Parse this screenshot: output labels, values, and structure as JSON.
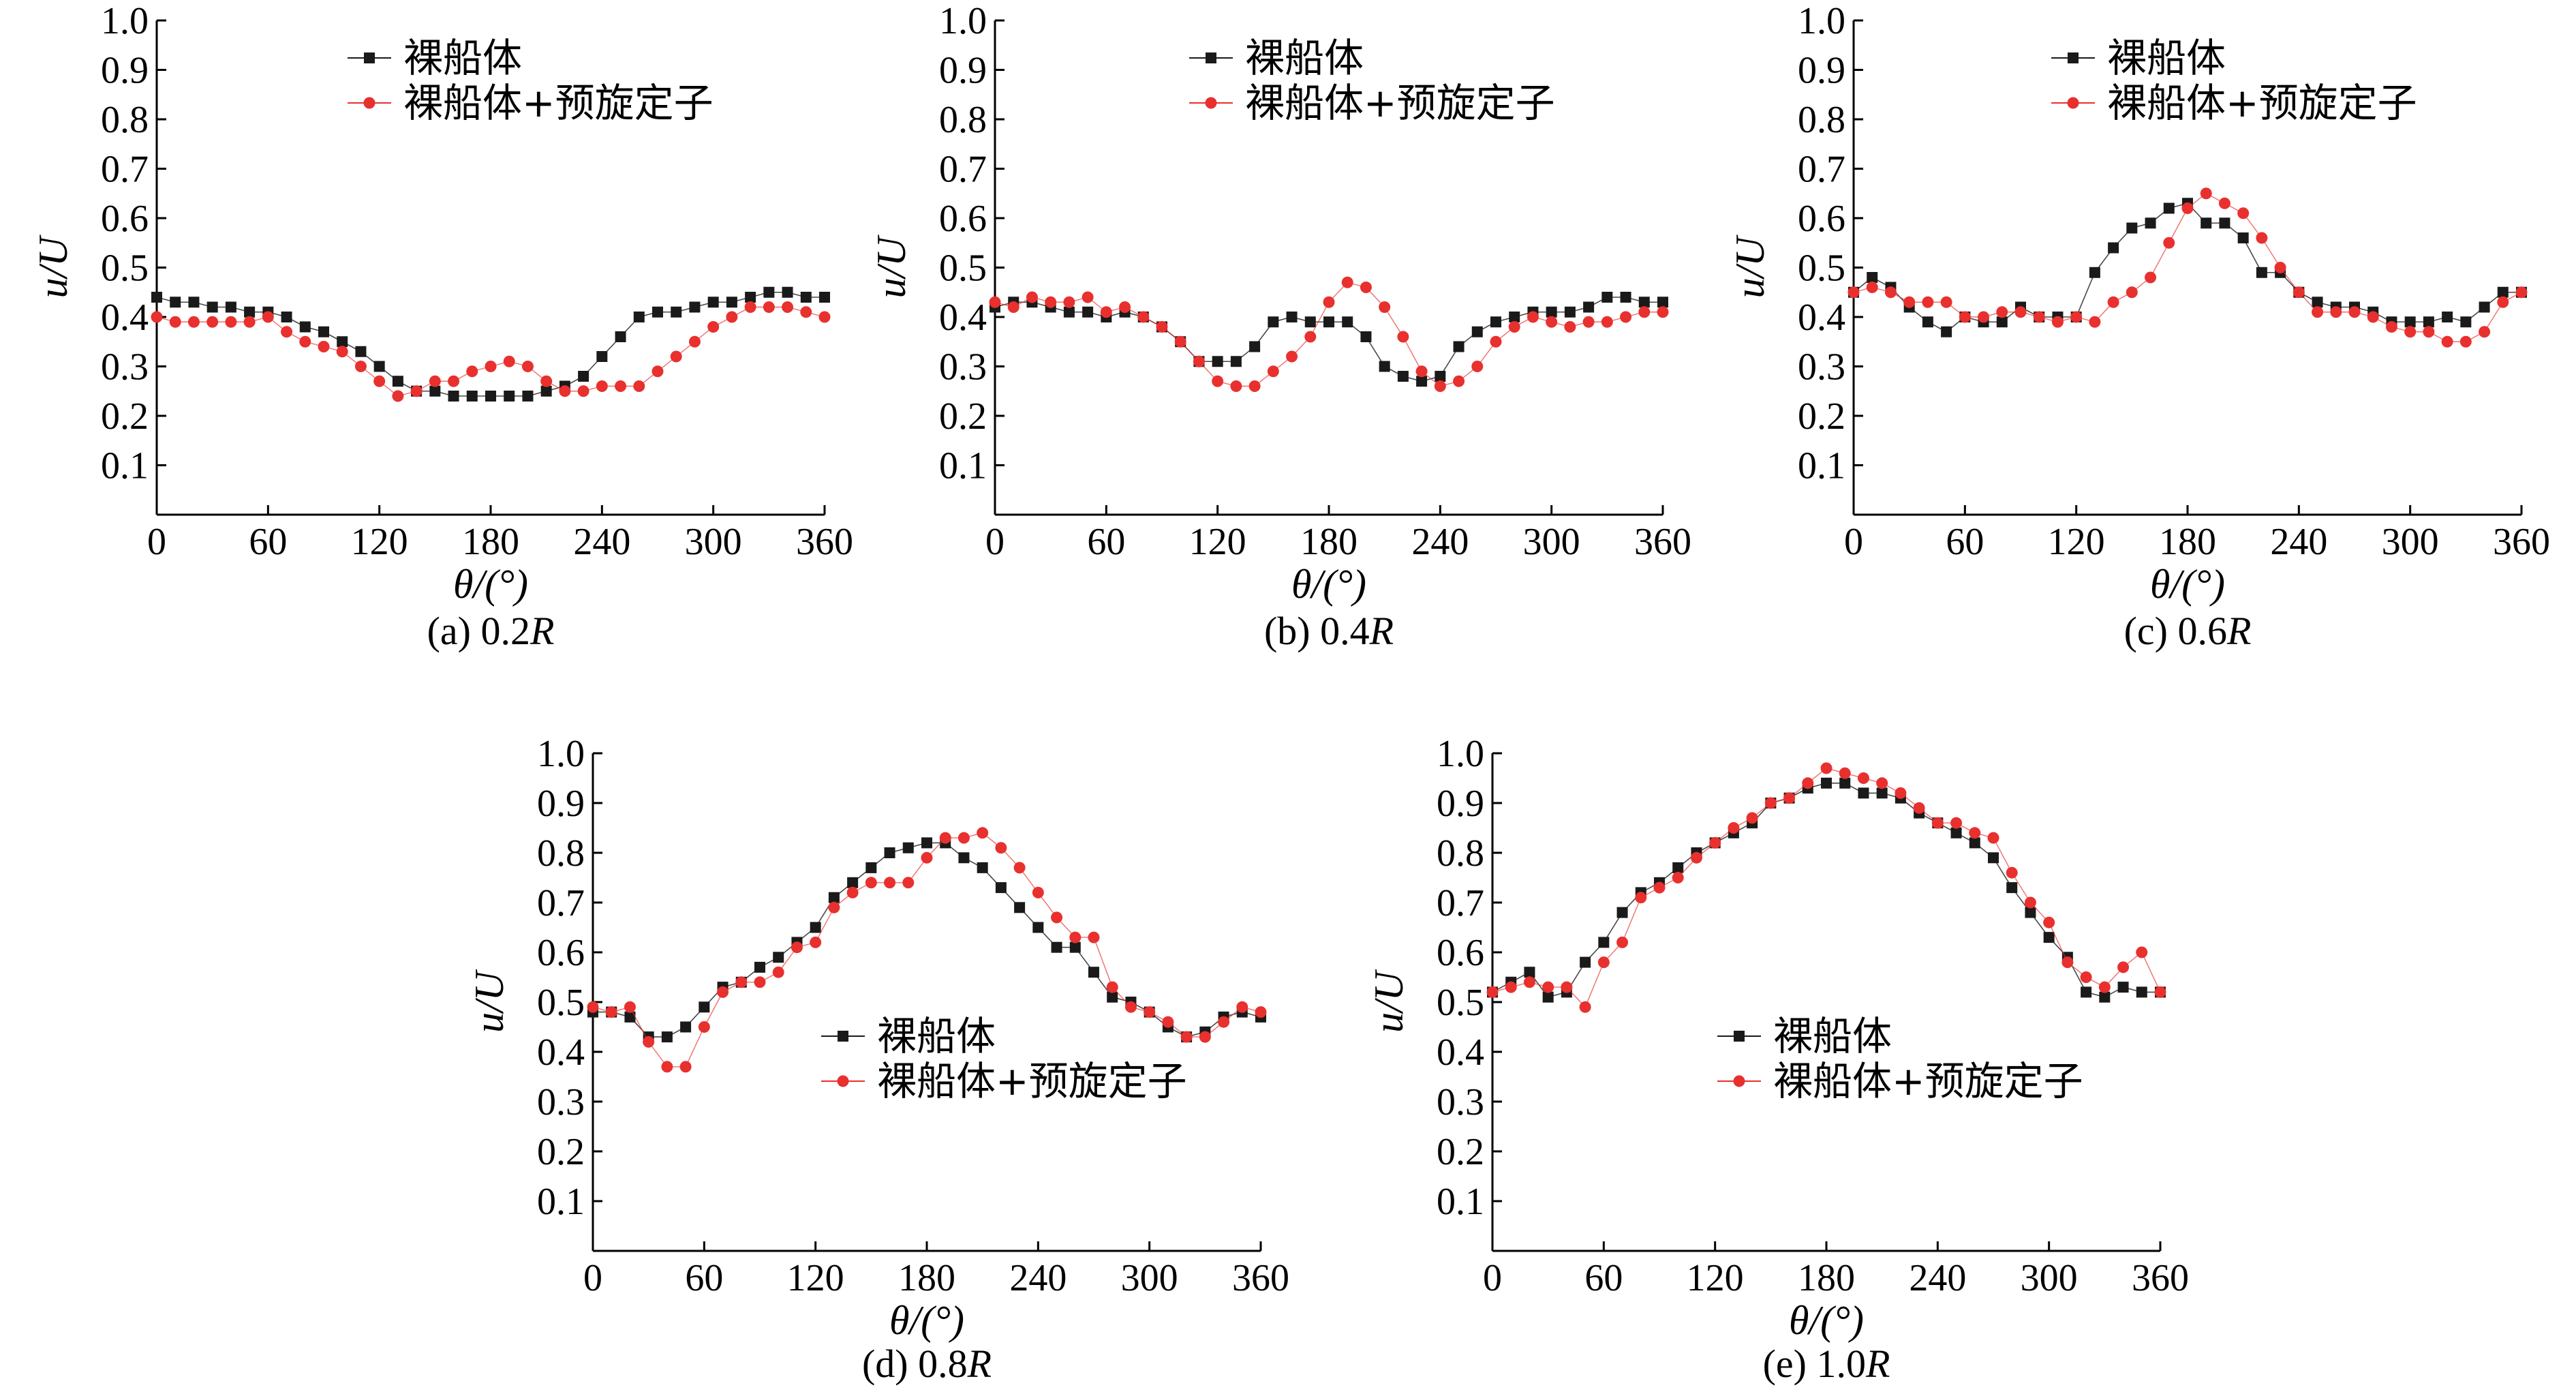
{
  "figure": {
    "legend_labels": [
      "裸船体",
      "裸船体+预旋定子"
    ],
    "colors": {
      "bare_hull": "#1a1a1a",
      "hull_with_stator": "#e8302e",
      "axis": "#000000"
    }
  },
  "chart_data": [
    {
      "type": "line",
      "caption": "(a) 0.2R",
      "caption_prefix": "(a) 0.2",
      "caption_suffix": "R",
      "xlabel": "θ/(°)",
      "ylabel": "u/U",
      "xlim": [
        0,
        360
      ],
      "ylim": [
        0,
        1.0
      ],
      "xticks": [
        0,
        60,
        120,
        180,
        240,
        300,
        360
      ],
      "yticks": [
        0.1,
        0.2,
        0.3,
        0.4,
        0.5,
        0.6,
        0.7,
        0.8,
        0.9,
        1.0
      ],
      "legend_position": "top-center",
      "x": [
        0,
        10,
        20,
        30,
        40,
        50,
        60,
        70,
        80,
        90,
        100,
        110,
        120,
        130,
        140,
        150,
        160,
        170,
        180,
        190,
        200,
        210,
        220,
        230,
        240,
        250,
        260,
        270,
        280,
        290,
        300,
        310,
        320,
        330,
        340,
        350,
        360
      ],
      "series": [
        {
          "name": "裸船体",
          "values": [
            0.44,
            0.43,
            0.43,
            0.42,
            0.42,
            0.41,
            0.41,
            0.4,
            0.38,
            0.37,
            0.35,
            0.33,
            0.3,
            0.27,
            0.25,
            0.25,
            0.24,
            0.24,
            0.24,
            0.24,
            0.24,
            0.25,
            0.26,
            0.28,
            0.32,
            0.36,
            0.4,
            0.41,
            0.41,
            0.42,
            0.43,
            0.43,
            0.44,
            0.45,
            0.45,
            0.44,
            0.44
          ]
        },
        {
          "name": "裸船体+预旋定子",
          "values": [
            0.4,
            0.39,
            0.39,
            0.39,
            0.39,
            0.39,
            0.4,
            0.37,
            0.35,
            0.34,
            0.33,
            0.3,
            0.27,
            0.24,
            0.25,
            0.27,
            0.27,
            0.29,
            0.3,
            0.31,
            0.3,
            0.27,
            0.25,
            0.25,
            0.26,
            0.26,
            0.26,
            0.29,
            0.32,
            0.35,
            0.38,
            0.4,
            0.42,
            0.42,
            0.42,
            0.41,
            0.4
          ]
        }
      ]
    },
    {
      "type": "line",
      "caption": "(b) 0.4R",
      "caption_prefix": "(b) 0.4",
      "caption_suffix": "R",
      "xlabel": "θ/(°)",
      "ylabel": "u/U",
      "xlim": [
        0,
        360
      ],
      "ylim": [
        0,
        1.0
      ],
      "xticks": [
        0,
        60,
        120,
        180,
        240,
        300,
        360
      ],
      "yticks": [
        0.1,
        0.2,
        0.3,
        0.4,
        0.5,
        0.6,
        0.7,
        0.8,
        0.9,
        1.0
      ],
      "legend_position": "top-center",
      "x": [
        0,
        10,
        20,
        30,
        40,
        50,
        60,
        70,
        80,
        90,
        100,
        110,
        120,
        130,
        140,
        150,
        160,
        170,
        180,
        190,
        200,
        210,
        220,
        230,
        240,
        250,
        260,
        270,
        280,
        290,
        300,
        310,
        320,
        330,
        340,
        350,
        360
      ],
      "series": [
        {
          "name": "裸船体",
          "values": [
            0.42,
            0.43,
            0.43,
            0.42,
            0.41,
            0.41,
            0.4,
            0.41,
            0.4,
            0.38,
            0.35,
            0.31,
            0.31,
            0.31,
            0.34,
            0.39,
            0.4,
            0.39,
            0.39,
            0.39,
            0.36,
            0.3,
            0.28,
            0.27,
            0.28,
            0.34,
            0.37,
            0.39,
            0.4,
            0.41,
            0.41,
            0.41,
            0.42,
            0.44,
            0.44,
            0.43,
            0.43
          ]
        },
        {
          "name": "裸船体+预旋定子",
          "values": [
            0.43,
            0.42,
            0.44,
            0.43,
            0.43,
            0.44,
            0.41,
            0.42,
            0.4,
            0.38,
            0.35,
            0.31,
            0.27,
            0.26,
            0.26,
            0.29,
            0.32,
            0.36,
            0.43,
            0.47,
            0.46,
            0.42,
            0.36,
            0.29,
            0.26,
            0.27,
            0.3,
            0.35,
            0.38,
            0.4,
            0.39,
            0.38,
            0.39,
            0.39,
            0.4,
            0.41,
            0.41
          ]
        }
      ]
    },
    {
      "type": "line",
      "caption": "(c) 0.6R",
      "caption_prefix": "(c) 0.6",
      "caption_suffix": "R",
      "xlabel": "θ/(°)",
      "ylabel": "u/U",
      "xlim": [
        0,
        360
      ],
      "ylim": [
        0,
        1.0
      ],
      "xticks": [
        0,
        60,
        120,
        180,
        240,
        300,
        360
      ],
      "yticks": [
        0.1,
        0.2,
        0.3,
        0.4,
        0.5,
        0.6,
        0.7,
        0.8,
        0.9,
        1.0
      ],
      "legend_position": "top-center",
      "x": [
        0,
        10,
        20,
        30,
        40,
        50,
        60,
        70,
        80,
        90,
        100,
        110,
        120,
        130,
        140,
        150,
        160,
        170,
        180,
        190,
        200,
        210,
        220,
        230,
        240,
        250,
        260,
        270,
        280,
        290,
        300,
        310,
        320,
        330,
        340,
        350,
        360
      ],
      "series": [
        {
          "name": "裸船体",
          "values": [
            0.45,
            0.48,
            0.46,
            0.42,
            0.39,
            0.37,
            0.4,
            0.39,
            0.39,
            0.42,
            0.4,
            0.4,
            0.4,
            0.49,
            0.54,
            0.58,
            0.59,
            0.62,
            0.63,
            0.59,
            0.59,
            0.56,
            0.49,
            0.49,
            0.45,
            0.43,
            0.42,
            0.42,
            0.41,
            0.39,
            0.39,
            0.39,
            0.4,
            0.39,
            0.42,
            0.45,
            0.45
          ]
        },
        {
          "name": "裸船体+预旋定子",
          "values": [
            0.45,
            0.46,
            0.45,
            0.43,
            0.43,
            0.43,
            0.4,
            0.4,
            0.41,
            0.41,
            0.4,
            0.39,
            0.4,
            0.39,
            0.43,
            0.45,
            0.48,
            0.55,
            0.62,
            0.65,
            0.63,
            0.61,
            0.56,
            0.5,
            0.45,
            0.41,
            0.41,
            0.41,
            0.4,
            0.38,
            0.37,
            0.37,
            0.35,
            0.35,
            0.37,
            0.43,
            0.45
          ]
        }
      ]
    },
    {
      "type": "line",
      "caption": "(d) 0.8R",
      "caption_prefix": "(d) 0.8",
      "caption_suffix": "R",
      "xlabel": "θ/(°)",
      "ylabel": "u/U",
      "xlim": [
        0,
        360
      ],
      "ylim": [
        0,
        1.0
      ],
      "xticks": [
        0,
        60,
        120,
        180,
        240,
        300,
        360
      ],
      "yticks": [
        0.1,
        0.2,
        0.3,
        0.4,
        0.5,
        0.6,
        0.7,
        0.8,
        0.9,
        1.0
      ],
      "legend_position": "center-right",
      "x": [
        0,
        10,
        20,
        30,
        40,
        50,
        60,
        70,
        80,
        90,
        100,
        110,
        120,
        130,
        140,
        150,
        160,
        170,
        180,
        190,
        200,
        210,
        220,
        230,
        240,
        250,
        260,
        270,
        280,
        290,
        300,
        310,
        320,
        330,
        340,
        350,
        360
      ],
      "series": [
        {
          "name": "裸船体",
          "values": [
            0.48,
            0.48,
            0.47,
            0.43,
            0.43,
            0.45,
            0.49,
            0.53,
            0.54,
            0.57,
            0.59,
            0.62,
            0.65,
            0.71,
            0.74,
            0.77,
            0.8,
            0.81,
            0.82,
            0.82,
            0.79,
            0.77,
            0.73,
            0.69,
            0.65,
            0.61,
            0.61,
            0.56,
            0.51,
            0.5,
            0.48,
            0.45,
            0.43,
            0.44,
            0.47,
            0.48,
            0.47
          ]
        },
        {
          "name": "裸船体+预旋定子",
          "values": [
            0.49,
            0.48,
            0.49,
            0.42,
            0.37,
            0.37,
            0.45,
            0.52,
            0.54,
            0.54,
            0.56,
            0.61,
            0.62,
            0.69,
            0.72,
            0.74,
            0.74,
            0.74,
            0.79,
            0.83,
            0.83,
            0.84,
            0.81,
            0.77,
            0.72,
            0.67,
            0.63,
            0.63,
            0.53,
            0.49,
            0.48,
            0.46,
            0.43,
            0.43,
            0.46,
            0.49,
            0.48
          ]
        }
      ]
    },
    {
      "type": "line",
      "caption": "(e) 1.0R",
      "caption_prefix": "(e) 1.0",
      "caption_suffix": "R",
      "xlabel": "θ/(°)",
      "ylabel": "u/U",
      "xlim": [
        0,
        360
      ],
      "ylim": [
        0,
        1.0
      ],
      "xticks": [
        0,
        60,
        120,
        180,
        240,
        300,
        360
      ],
      "yticks": [
        0.1,
        0.2,
        0.3,
        0.4,
        0.5,
        0.6,
        0.7,
        0.8,
        0.9,
        1.0
      ],
      "legend_position": "center-right",
      "x": [
        0,
        10,
        20,
        30,
        40,
        50,
        60,
        70,
        80,
        90,
        100,
        110,
        120,
        130,
        140,
        150,
        160,
        170,
        180,
        190,
        200,
        210,
        220,
        230,
        240,
        250,
        260,
        270,
        280,
        290,
        300,
        310,
        320,
        330,
        340,
        350,
        360
      ],
      "series": [
        {
          "name": "裸船体",
          "values": [
            0.52,
            0.54,
            0.56,
            0.51,
            0.52,
            0.58,
            0.62,
            0.68,
            0.72,
            0.74,
            0.77,
            0.8,
            0.82,
            0.84,
            0.86,
            0.9,
            0.91,
            0.93,
            0.94,
            0.94,
            0.92,
            0.92,
            0.91,
            0.88,
            0.86,
            0.84,
            0.82,
            0.79,
            0.73,
            0.68,
            0.63,
            0.59,
            0.52,
            0.51,
            0.53,
            0.52,
            0.52
          ]
        },
        {
          "name": "裸船体+预旋定子",
          "values": [
            0.52,
            0.53,
            0.54,
            0.53,
            0.53,
            0.49,
            0.58,
            0.62,
            0.71,
            0.73,
            0.75,
            0.79,
            0.82,
            0.85,
            0.87,
            0.9,
            0.91,
            0.94,
            0.97,
            0.96,
            0.95,
            0.94,
            0.92,
            0.89,
            0.86,
            0.86,
            0.84,
            0.83,
            0.76,
            0.7,
            0.66,
            0.58,
            0.55,
            0.53,
            0.57,
            0.6,
            0.52
          ]
        }
      ]
    }
  ]
}
